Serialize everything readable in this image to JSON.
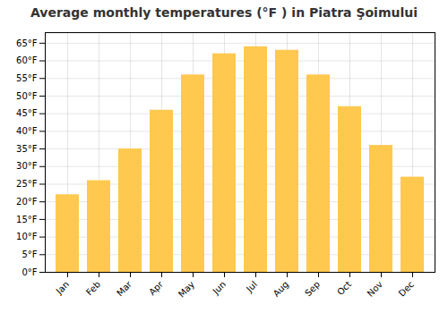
{
  "chart_data": {
    "type": "bar",
    "title": "Average monthly temperatures (°F ) in Piatra Şoimului",
    "categories": [
      "Jan",
      "Feb",
      "Mar",
      "Apr",
      "May",
      "Jun",
      "Jul",
      "Aug",
      "Sep",
      "Oct",
      "Nov",
      "Dec"
    ],
    "values": [
      22,
      26,
      35,
      46,
      56,
      62,
      64,
      63,
      56,
      47,
      36,
      27
    ],
    "color": "#FFC84E",
    "ylim": [
      0,
      68
    ],
    "yticks": [
      {
        "value": 0,
        "label": "0°F"
      },
      {
        "value": 5,
        "label": "5°F"
      },
      {
        "value": 10,
        "label": "10°F"
      },
      {
        "value": 15,
        "label": "15°F"
      },
      {
        "value": 20,
        "label": "20°F"
      },
      {
        "value": 25,
        "label": "25°F"
      },
      {
        "value": 30,
        "label": "30°F"
      },
      {
        "value": 35,
        "label": "35°F"
      },
      {
        "value": 40,
        "label": "40°F"
      },
      {
        "value": 45,
        "label": "45°F"
      },
      {
        "value": 50,
        "label": "50°F"
      },
      {
        "value": 55,
        "label": "55°F"
      },
      {
        "value": 60,
        "label": "60°F"
      },
      {
        "value": 65,
        "label": "65°F"
      }
    ],
    "grid": true
  }
}
